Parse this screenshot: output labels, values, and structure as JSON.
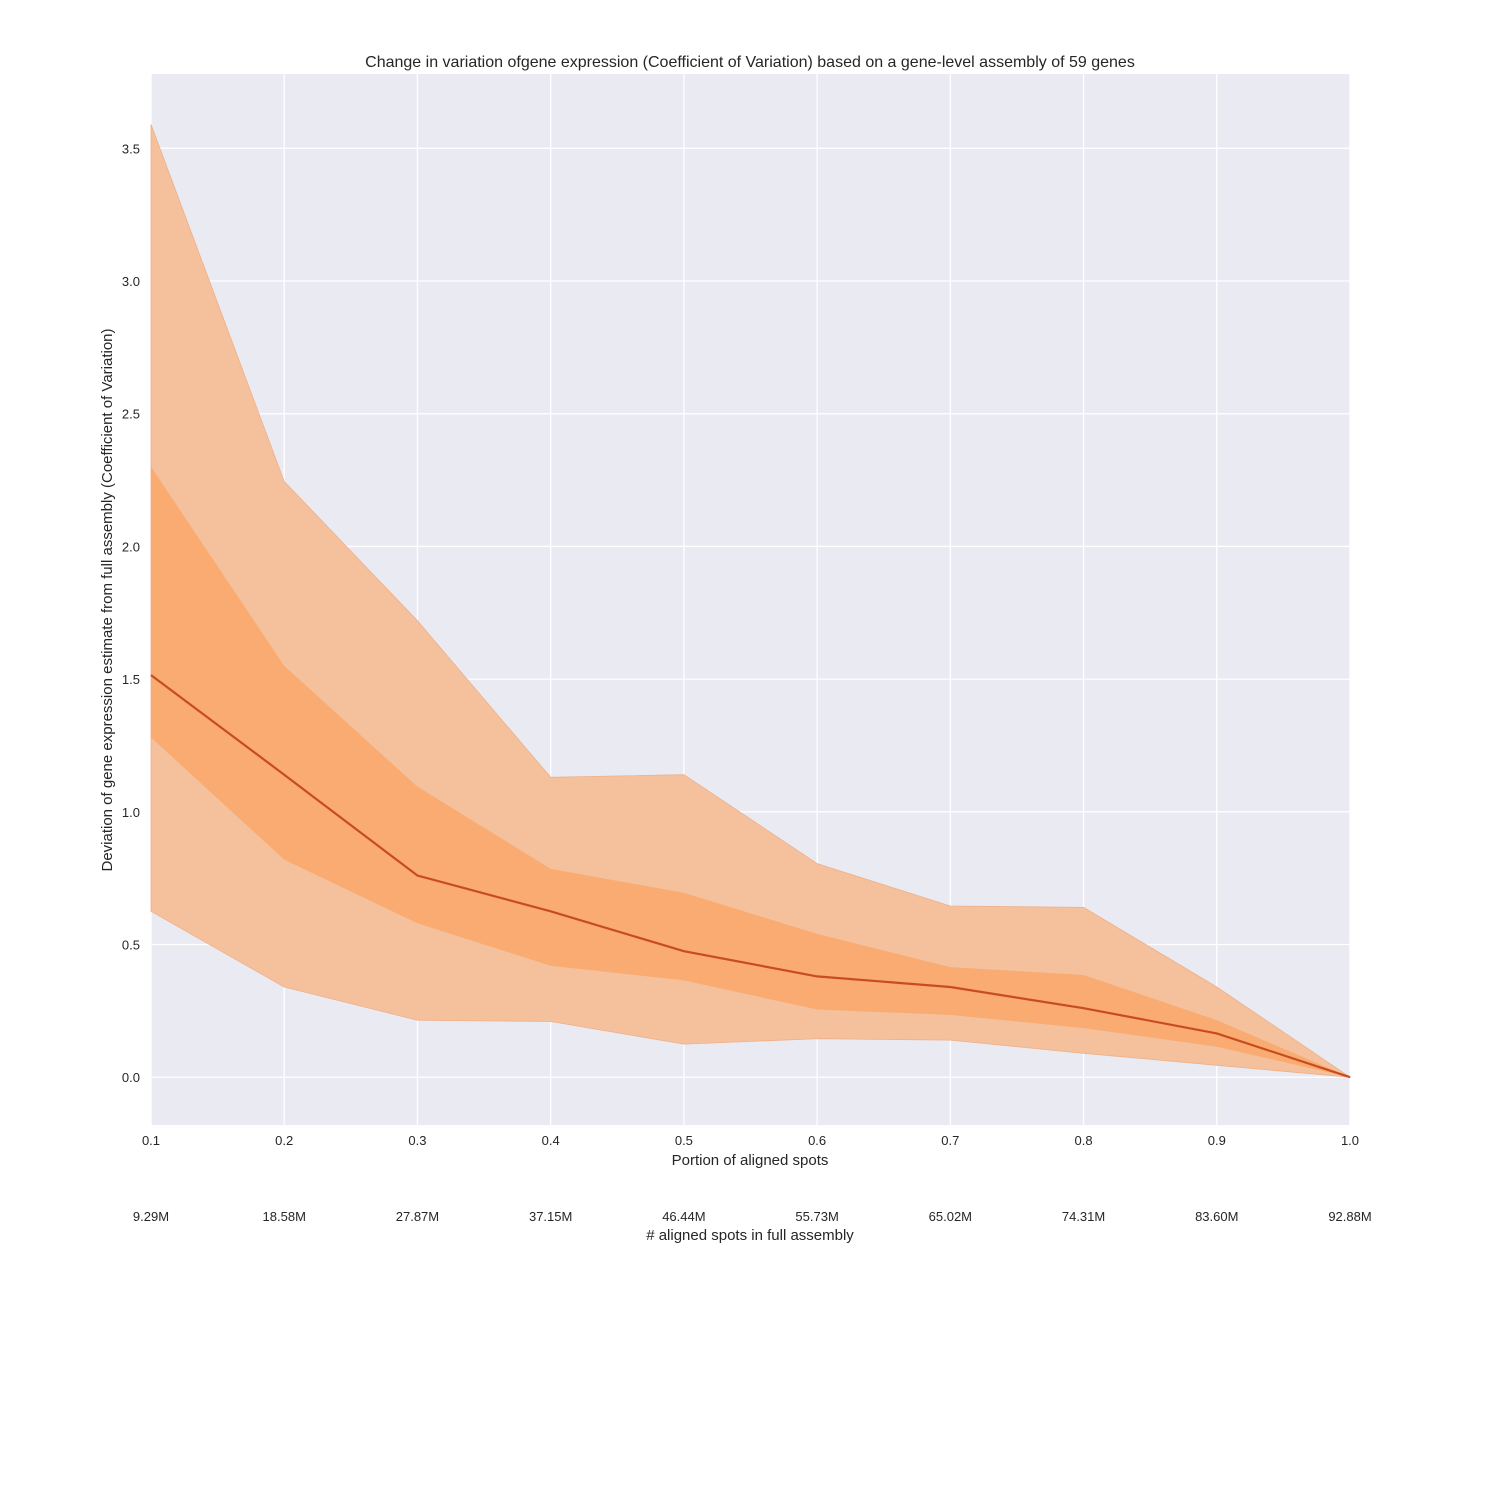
{
  "chart_data": {
    "type": "line",
    "title": "Change in variation ofgene expression (Coefficient of Variation) based on a gene-level assembly of 59 genes",
    "xlabel": "Portion of aligned spots",
    "ylabel": "Deviation of gene expression estimate from full assembly (Coefficient of Variation)",
    "secondary_xlabel": "# aligned spots in full assembly",
    "x": [
      0.1,
      0.2,
      0.3,
      0.4,
      0.5,
      0.6,
      0.7,
      0.8,
      0.9,
      1.0
    ],
    "x_tick_labels": [
      "0.1",
      "0.2",
      "0.3",
      "0.4",
      "0.5",
      "0.6",
      "0.7",
      "0.8",
      "0.9",
      "1.0"
    ],
    "secondary_x_tick_labels": [
      "9.29M",
      "18.58M",
      "27.87M",
      "37.15M",
      "46.44M",
      "55.73M",
      "65.02M",
      "74.31M",
      "83.60M",
      "92.88M"
    ],
    "y_ticks": [
      0.0,
      0.5,
      1.0,
      1.5,
      2.0,
      2.5,
      3.0,
      3.5
    ],
    "y_tick_labels": [
      "0.0",
      "0.5",
      "1.0",
      "1.5",
      "2.0",
      "2.5",
      "3.0",
      "3.5"
    ],
    "xlim": [
      0.1,
      1.0
    ],
    "ylim": [
      -0.18,
      3.78
    ],
    "grid": true,
    "series": [
      {
        "values": [
          1.515,
          1.14,
          0.76,
          0.625,
          0.475,
          0.38,
          0.34,
          0.26,
          0.165,
          0.0
        ],
        "inner_band_upper": [
          2.3,
          1.55,
          1.095,
          0.785,
          0.695,
          0.54,
          0.415,
          0.385,
          0.215,
          0.0
        ],
        "inner_band_lower": [
          1.28,
          0.82,
          0.58,
          0.42,
          0.365,
          0.255,
          0.235,
          0.185,
          0.115,
          0.0
        ],
        "outer_band_upper": [
          3.59,
          2.245,
          1.72,
          1.13,
          1.14,
          0.805,
          0.645,
          0.64,
          0.34,
          0.0
        ],
        "outer_band_lower": [
          0.625,
          0.34,
          0.215,
          0.21,
          0.125,
          0.145,
          0.14,
          0.09,
          0.045,
          0.0
        ]
      }
    ],
    "colors": {
      "plot_background": "#eaeaf2",
      "line": "#c94c1f",
      "inner_band": "#f9a76a",
      "outer_band": "#f4c19c"
    }
  }
}
